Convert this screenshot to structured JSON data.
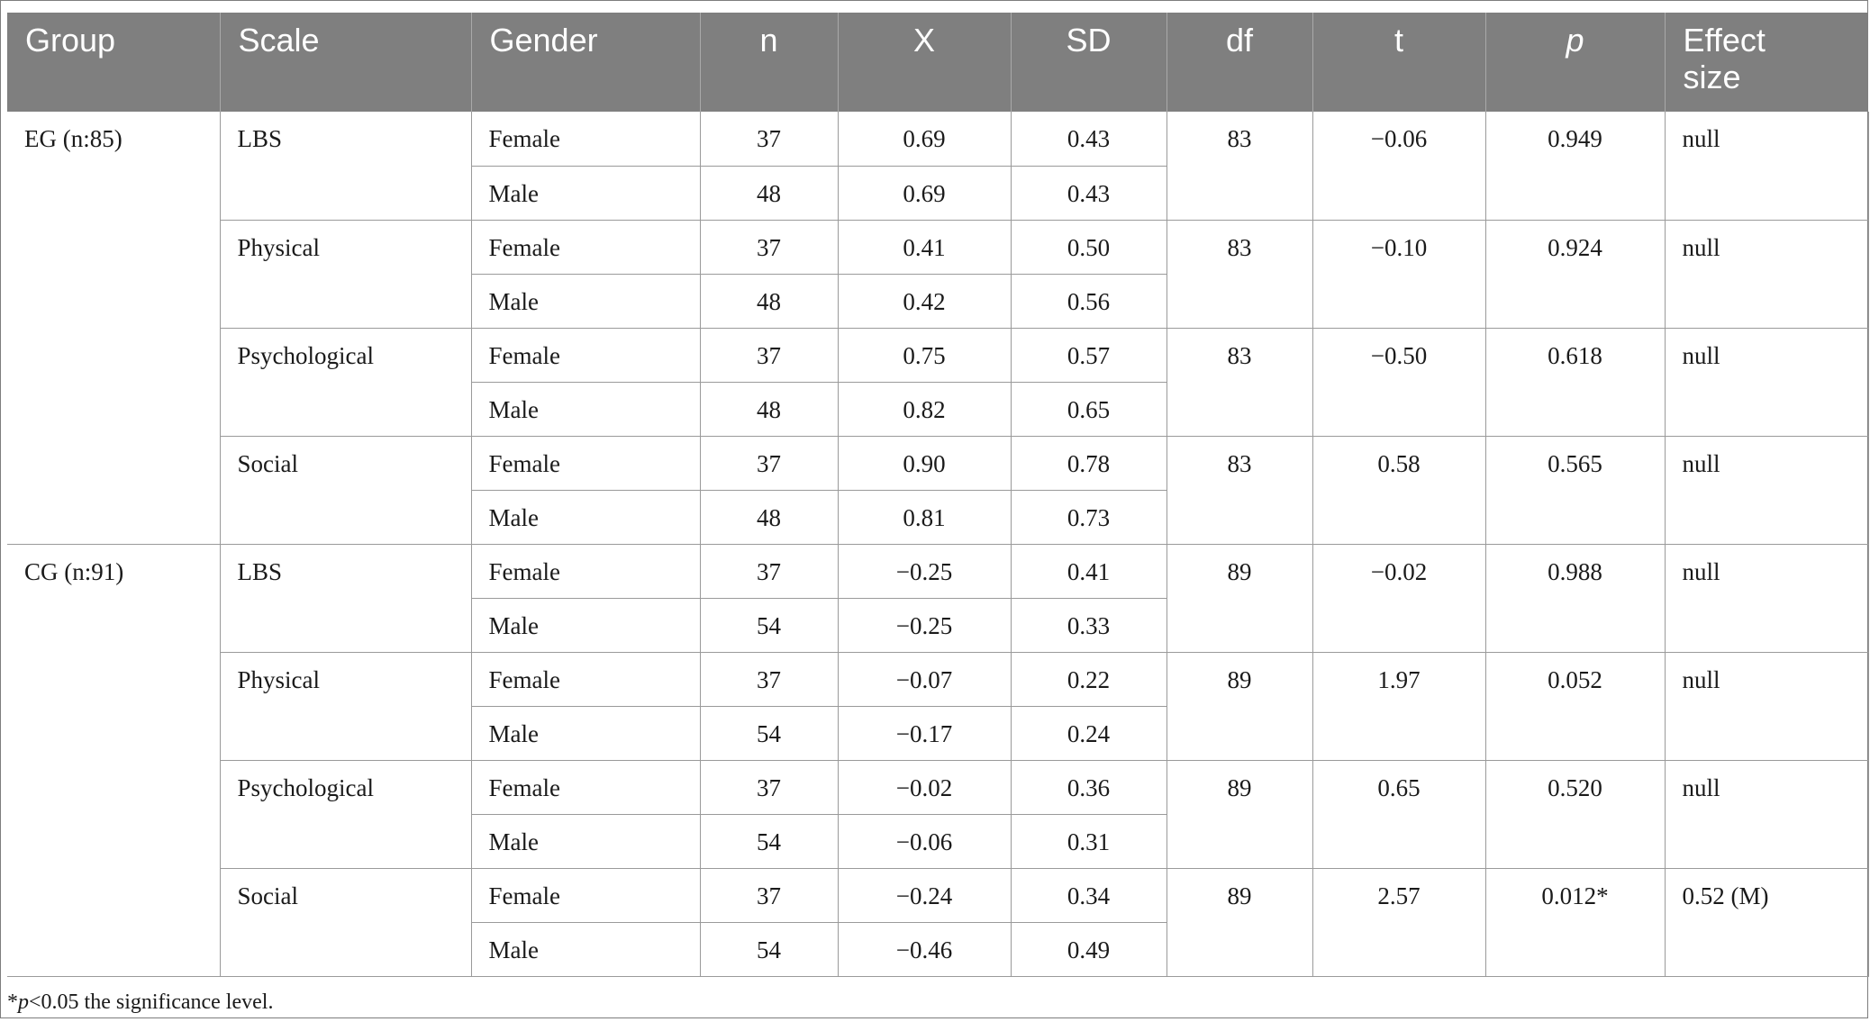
{
  "headers": {
    "group": "Group",
    "scale": "Scale",
    "gender": "Gender",
    "n": "n",
    "x": "X",
    "sd": "SD",
    "df": "df",
    "t": "t",
    "p": "p",
    "effect_line1": "Effect",
    "effect_line2": "size"
  },
  "groups": [
    {
      "label": "EG (n:85)",
      "scales": [
        {
          "name": "LBS",
          "df": "83",
          "t": "−0.06",
          "p": "0.949",
          "effect": "null",
          "rows": [
            {
              "gender": "Female",
              "n": "37",
              "x": "0.69",
              "sd": "0.43"
            },
            {
              "gender": "Male",
              "n": "48",
              "x": "0.69",
              "sd": "0.43"
            }
          ]
        },
        {
          "name": "Physical",
          "df": "83",
          "t": "−0.10",
          "p": "0.924",
          "effect": "null",
          "rows": [
            {
              "gender": "Female",
              "n": "37",
              "x": "0.41",
              "sd": "0.50"
            },
            {
              "gender": "Male",
              "n": "48",
              "x": "0.42",
              "sd": "0.56"
            }
          ]
        },
        {
          "name": "Psychological",
          "df": "83",
          "t": "−0.50",
          "p": "0.618",
          "effect": "null",
          "rows": [
            {
              "gender": "Female",
              "n": "37",
              "x": "0.75",
              "sd": "0.57"
            },
            {
              "gender": "Male",
              "n": "48",
              "x": "0.82",
              "sd": "0.65"
            }
          ]
        },
        {
          "name": "Social",
          "df": "83",
          "t": "0.58",
          "p": "0.565",
          "effect": "null",
          "rows": [
            {
              "gender": "Female",
              "n": "37",
              "x": "0.90",
              "sd": "0.78"
            },
            {
              "gender": "Male",
              "n": "48",
              "x": "0.81",
              "sd": "0.73"
            }
          ]
        }
      ]
    },
    {
      "label": "CG (n:91)",
      "scales": [
        {
          "name": "LBS",
          "df": "89",
          "t": "−0.02",
          "p": "0.988",
          "effect": "null",
          "rows": [
            {
              "gender": "Female",
              "n": "37",
              "x": "−0.25",
              "sd": "0.41"
            },
            {
              "gender": "Male",
              "n": "54",
              "x": "−0.25",
              "sd": "0.33"
            }
          ]
        },
        {
          "name": "Physical",
          "df": "89",
          "t": "1.97",
          "p": "0.052",
          "effect": "null",
          "rows": [
            {
              "gender": "Female",
              "n": "37",
              "x": "−0.07",
              "sd": "0.22"
            },
            {
              "gender": "Male",
              "n": "54",
              "x": "−0.17",
              "sd": "0.24"
            }
          ]
        },
        {
          "name": "Psychological",
          "df": "89",
          "t": "0.65",
          "p": "0.520",
          "effect": "null",
          "rows": [
            {
              "gender": "Female",
              "n": "37",
              "x": "−0.02",
              "sd": "0.36"
            },
            {
              "gender": "Male",
              "n": "54",
              "x": "−0.06",
              "sd": "0.31"
            }
          ]
        },
        {
          "name": "Social",
          "df": "89",
          "t": "2.57",
          "p": "0.012*",
          "effect": "0.52 (M)",
          "rows": [
            {
              "gender": "Female",
              "n": "37",
              "x": "−0.24",
              "sd": "0.34"
            },
            {
              "gender": "Male",
              "n": "54",
              "x": "−0.46",
              "sd": "0.49"
            }
          ]
        }
      ]
    }
  ],
  "footnote": {
    "star": "*",
    "p": "p",
    "rest": "<0.05 the significance level."
  }
}
